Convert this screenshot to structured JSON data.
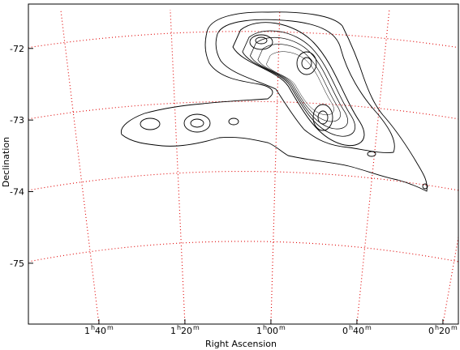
{
  "chart_data": {
    "type": "contour",
    "xlabel": "Right Ascension",
    "ylabel": "Declination",
    "xlim": [
      116.4,
      16.4
    ],
    "ylim": [
      -71.38,
      -75.85
    ],
    "xticks": [
      {
        "value": 100,
        "label": "1h40m"
      },
      {
        "value": 80,
        "label": "1h20m"
      },
      {
        "value": 60,
        "label": "1h00m"
      },
      {
        "value": 40,
        "label": "0h40m"
      },
      {
        "value": 20,
        "label": "0h20m"
      }
    ],
    "yticks": [
      -72,
      -73,
      -74,
      -75
    ],
    "grid": true
  }
}
